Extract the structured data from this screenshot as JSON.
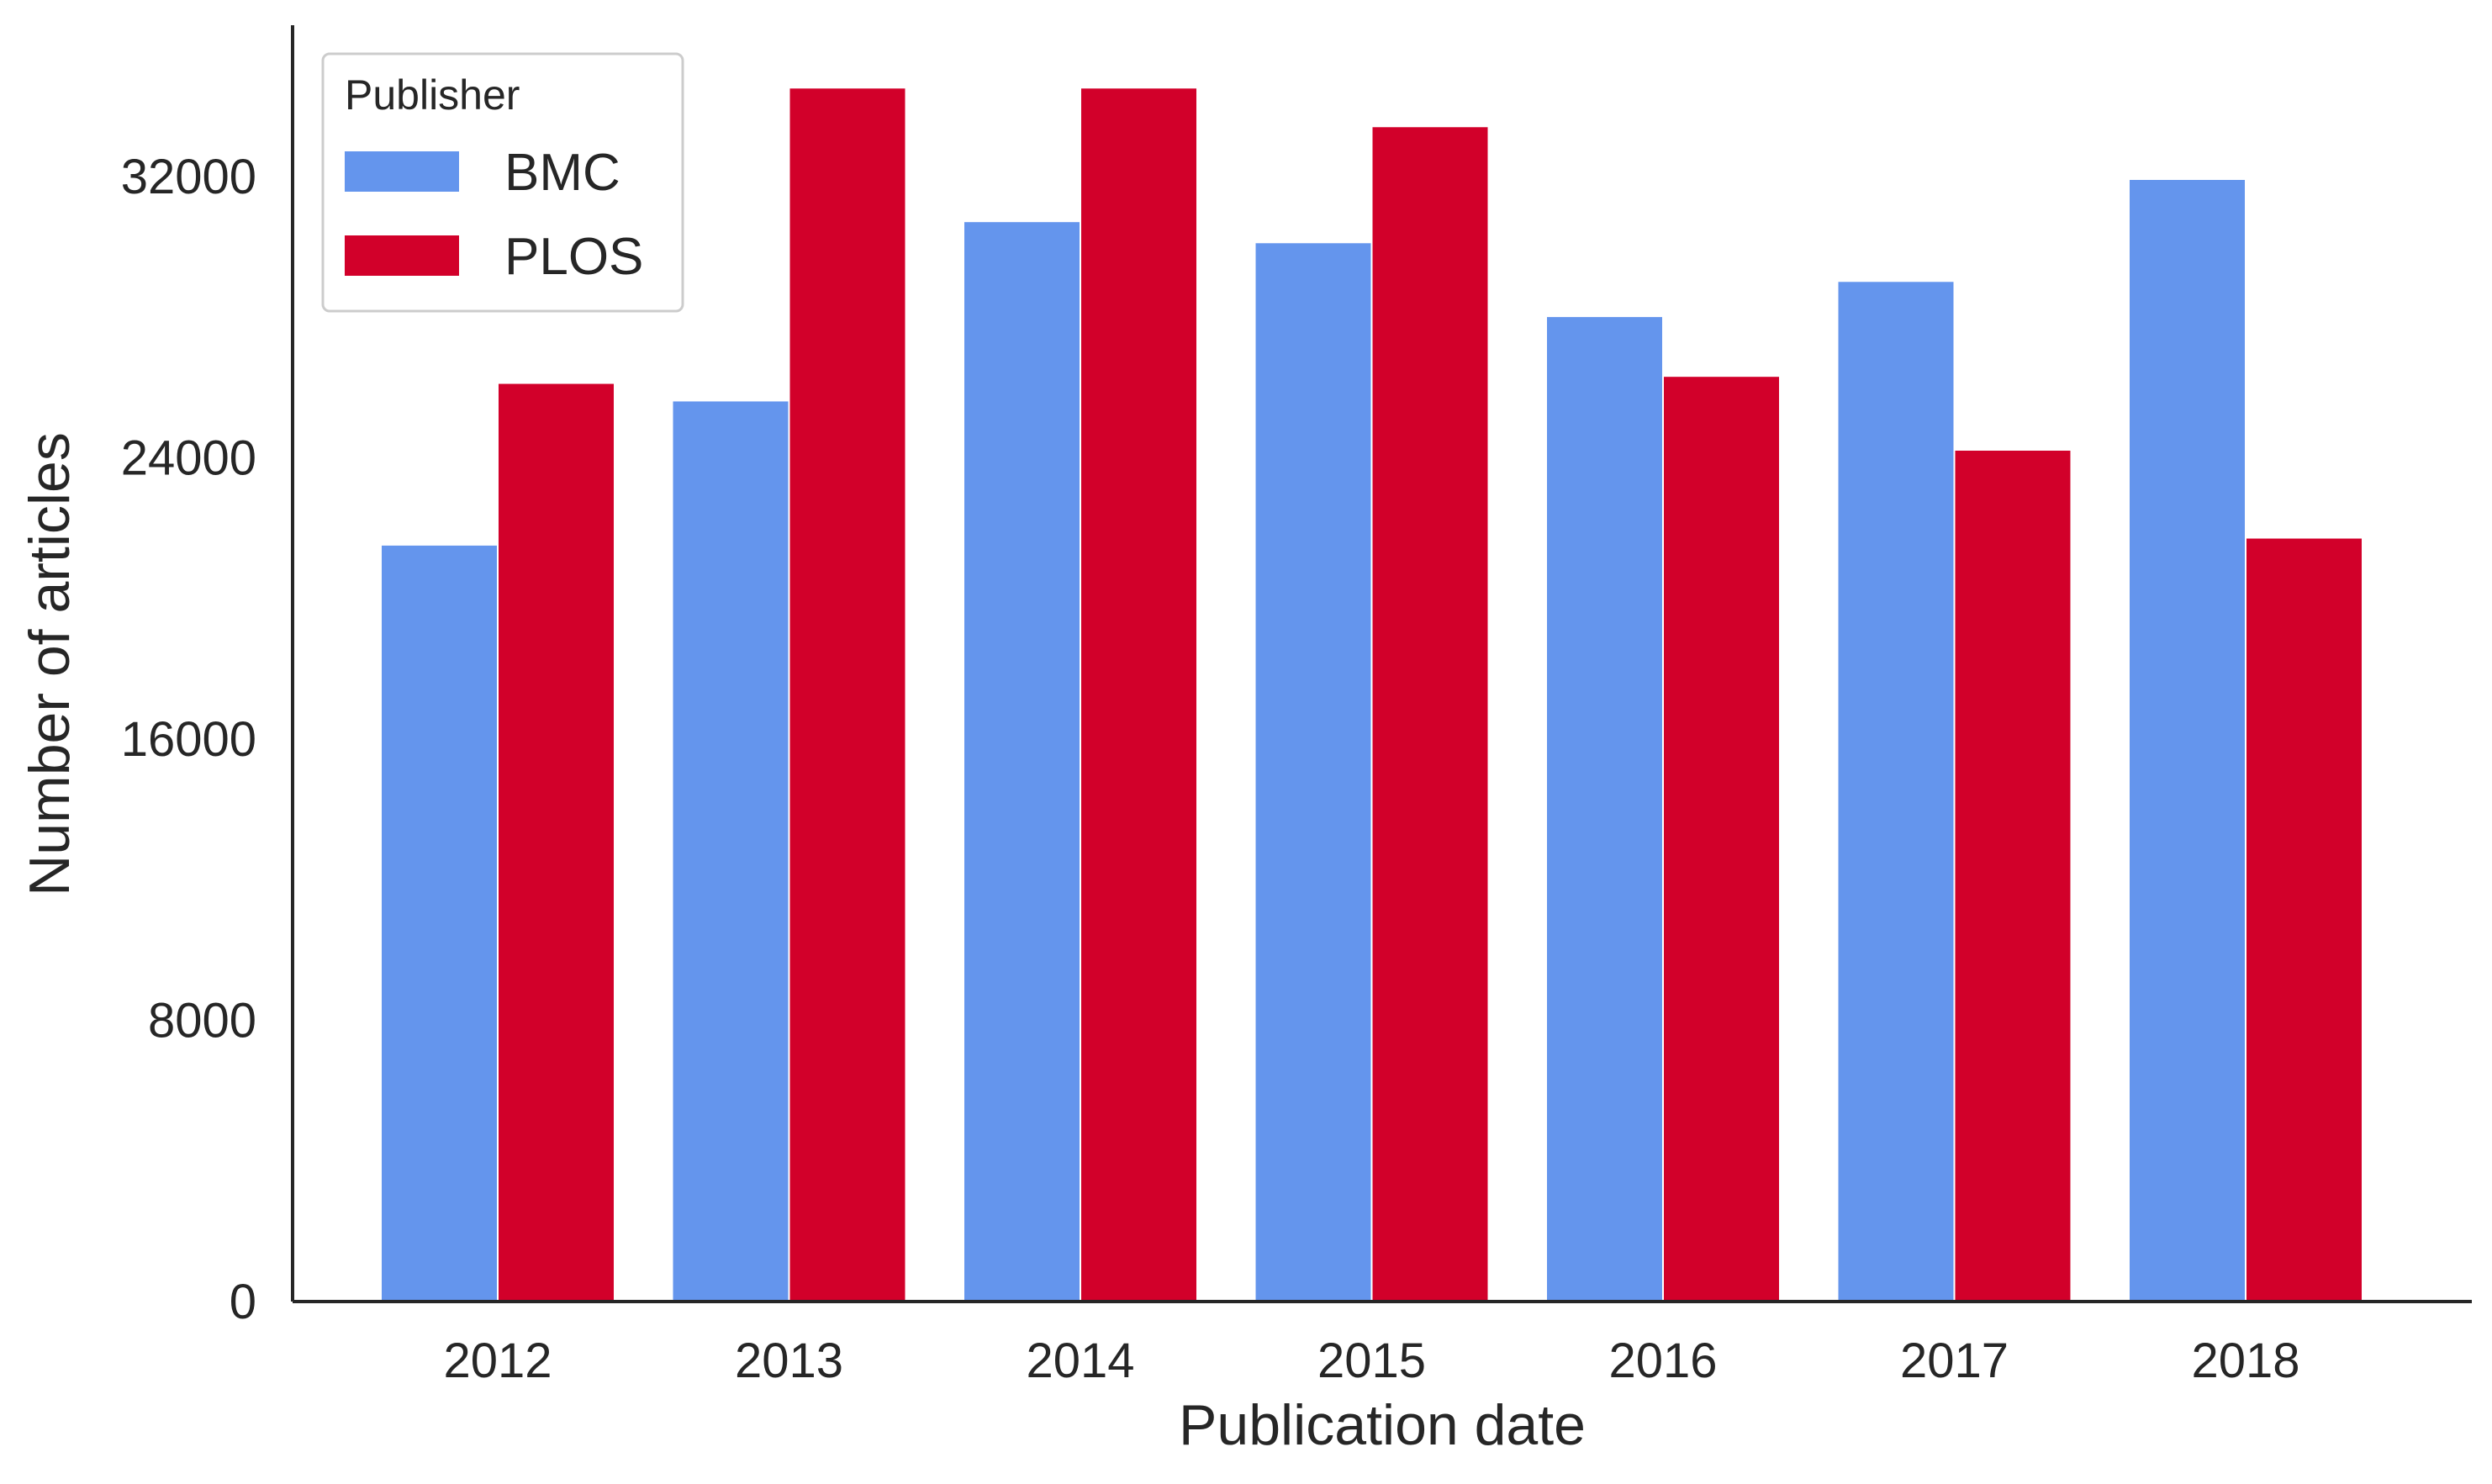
{
  "chart_data": {
    "type": "bar",
    "categories": [
      "2012",
      "2013",
      "2014",
      "2015",
      "2016",
      "2017",
      "2018"
    ],
    "series": [
      {
        "name": "BMC",
        "color": "#6495ED",
        "values": [
          21500,
          25600,
          30700,
          30100,
          28000,
          29000,
          31900
        ]
      },
      {
        "name": "PLOS",
        "color": "#D2002A",
        "values": [
          26100,
          34500,
          34500,
          33400,
          26300,
          24200,
          21700
        ]
      }
    ],
    "xlabel": "Publication date",
    "ylabel": "Number of articles",
    "yticks": [
      0,
      8000,
      16000,
      24000,
      32000
    ],
    "ylim": [
      0,
      36300
    ],
    "legend": {
      "title": "Publisher",
      "placement": "top-left"
    },
    "grid": false
  }
}
